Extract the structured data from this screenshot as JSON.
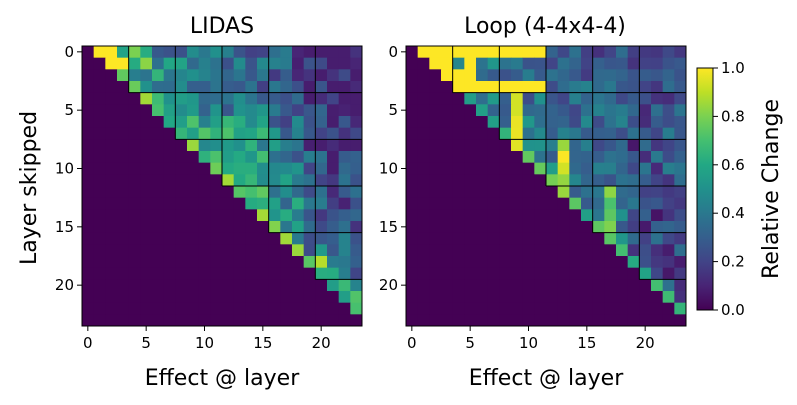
{
  "chart_data": {
    "type": "heatmap",
    "colormap": "viridis",
    "n": 24,
    "color_range": [
      0.0,
      1.0
    ],
    "panels": [
      {
        "title": "LIDAS",
        "xlabel": "Effect @ layer",
        "ylabel": "Layer skipped",
        "xticks": [
          0,
          5,
          10,
          15,
          20
        ],
        "yticks": [
          0,
          5,
          10,
          15,
          20
        ],
        "block_boundaries": [
          3,
          7,
          11,
          15,
          19
        ],
        "description_values": "upper-triangular relative change; ~1.0 on first off-diagonals near layers 0-3, mid values 0.3-0.9 elsewhere, 0 below diagonal"
      },
      {
        "title": "Loop (4-4x4-4)",
        "xlabel": "Effect @ layer",
        "ylabel": "",
        "xticks": [
          0,
          5,
          10,
          15,
          20
        ],
        "yticks": [
          0,
          5,
          10,
          15,
          20
        ],
        "block_boundaries": [
          3,
          7,
          11,
          15,
          19
        ],
        "description_values": "upper-triangular relative change; ~1.0 across row 0 and row 3 (layers 1-11), high values in loop blocks, 0 below diagonal"
      }
    ],
    "colorbar": {
      "label": "Relative Change",
      "ticks": [
        "0.0",
        "0.2",
        "0.4",
        "0.6",
        "0.8",
        "1.0"
      ]
    }
  }
}
